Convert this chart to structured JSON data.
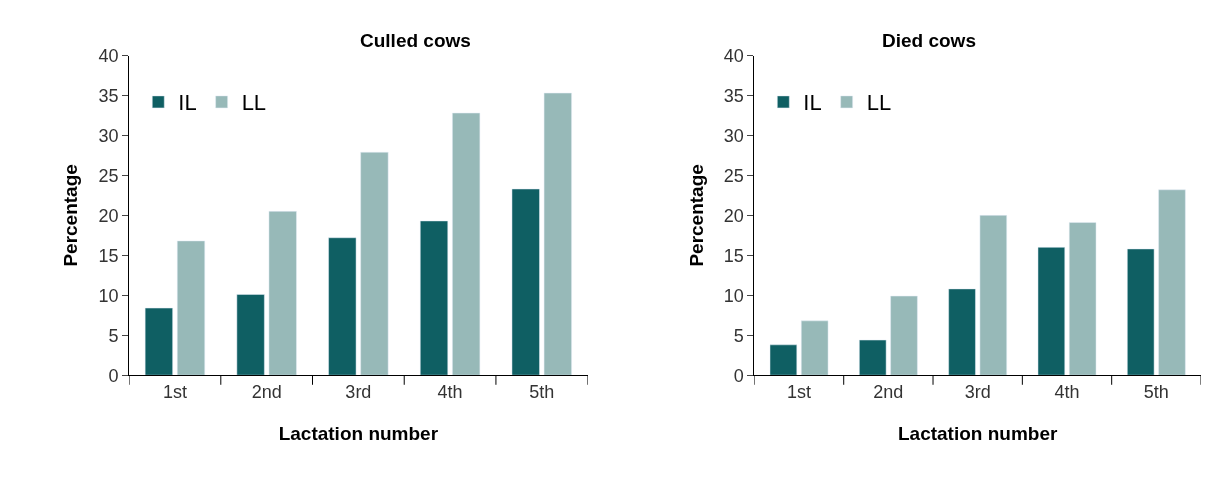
{
  "chart_data": [
    {
      "type": "bar",
      "title": "Culled cows",
      "xlabel": "Lactation number",
      "ylabel": "Percentage",
      "categories": [
        "1st",
        "2nd",
        "3rd",
        "4th",
        "5th"
      ],
      "series": [
        {
          "name": "IL",
          "color": "#0f5f63",
          "values": [
            8.4,
            10.1,
            17.2,
            19.3,
            23.3
          ]
        },
        {
          "name": "LL",
          "color": "#97b9b8",
          "values": [
            16.8,
            20.5,
            27.9,
            32.8,
            35.3
          ]
        }
      ],
      "ylim": [
        0,
        40
      ],
      "yticks": [
        0,
        5,
        10,
        15,
        20,
        25,
        30,
        35,
        40
      ],
      "legend": "top left"
    },
    {
      "type": "bar",
      "title": "Died cows",
      "xlabel": "Lactation number",
      "ylabel": "Percentage",
      "categories": [
        "1st",
        "2nd",
        "3rd",
        "4th",
        "5th"
      ],
      "series": [
        {
          "name": "IL",
          "color": "#0f5f63",
          "values": [
            3.8,
            4.4,
            10.8,
            16.0,
            15.8
          ]
        },
        {
          "name": "LL",
          "color": "#97b9b8",
          "values": [
            6.8,
            9.9,
            20.0,
            19.1,
            23.2
          ]
        }
      ],
      "ylim": [
        0,
        40
      ],
      "yticks": [
        0,
        5,
        10,
        15,
        20,
        25,
        30,
        35,
        40
      ],
      "legend": "top left"
    }
  ]
}
